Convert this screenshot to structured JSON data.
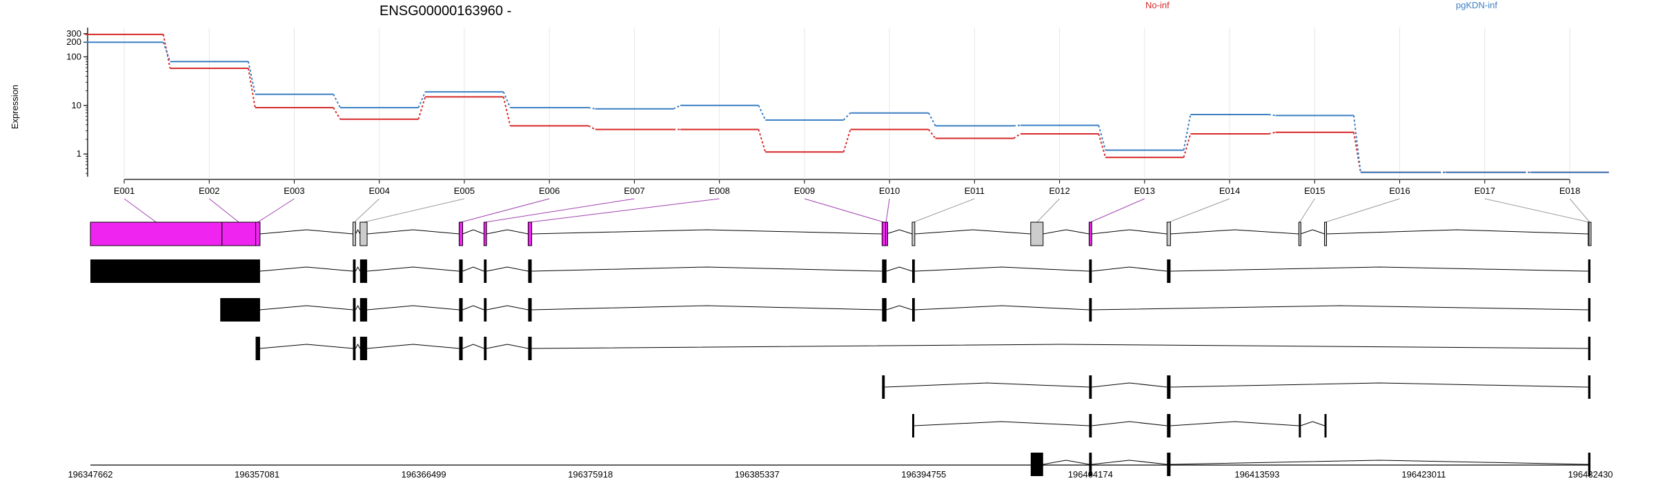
{
  "chart_data": {
    "type": "line",
    "title": "ENSG00000163960 -",
    "ylabel": "Expression",
    "y_scale": "log",
    "yticks": [
      "1",
      "10",
      "100",
      "200",
      "300"
    ],
    "categories": [
      "E001",
      "E002",
      "E003",
      "E004",
      "E005",
      "E006",
      "E007",
      "E008",
      "E009",
      "E010",
      "E011",
      "E012",
      "E013",
      "E014",
      "E015",
      "E016",
      "E017",
      "E018"
    ],
    "series": [
      {
        "name": "No-inf",
        "color": "#d62728",
        "values": [
          290,
          58,
          9,
          5.2,
          15,
          3.8,
          3.2,
          3.2,
          1.1,
          3.2,
          2.1,
          2.6,
          0.85,
          2.6,
          2.8,
          0.42,
          0.42,
          0.42
        ]
      },
      {
        "name": "pgKDN-inf",
        "color": "#3a7fc1",
        "values": [
          200,
          80,
          17,
          9,
          19,
          9,
          8.5,
          10,
          5,
          7,
          3.8,
          3.9,
          1.2,
          6.5,
          6.2,
          0.42,
          0.42,
          0.42
        ]
      }
    ],
    "genome_axis": {
      "ticks": [
        "196347662",
        "196357081",
        "196366499",
        "196375918",
        "196385337",
        "196394755",
        "196404174",
        "196413593",
        "196423011",
        "196432430"
      ],
      "min": 196347662,
      "max": 196432430
    },
    "exons": [
      {
        "id": "E001",
        "start": 196347662,
        "end": 196355100,
        "status": "highlighted"
      },
      {
        "id": "E002",
        "start": 196355100,
        "end": 196357000,
        "status": "highlighted"
      },
      {
        "id": "E003",
        "start": 196357000,
        "end": 196357250,
        "status": "highlighted"
      },
      {
        "id": "E004",
        "start": 196362500,
        "end": 196362650,
        "status": "plain"
      },
      {
        "id": "E005",
        "start": 196362900,
        "end": 196363300,
        "status": "plain"
      },
      {
        "id": "E006",
        "start": 196368500,
        "end": 196368700,
        "status": "highlighted"
      },
      {
        "id": "E007",
        "start": 196369900,
        "end": 196370050,
        "status": "highlighted"
      },
      {
        "id": "E008",
        "start": 196372400,
        "end": 196372600,
        "status": "highlighted"
      },
      {
        "id": "E009",
        "start": 196392400,
        "end": 196392600,
        "status": "highlighted"
      },
      {
        "id": "E010",
        "start": 196392600,
        "end": 196392650,
        "status": "highlighted"
      },
      {
        "id": "E011",
        "start": 196394100,
        "end": 196394250,
        "status": "plain"
      },
      {
        "id": "E012",
        "start": 196400800,
        "end": 196401500,
        "status": "plain"
      },
      {
        "id": "E013",
        "start": 196404100,
        "end": 196404250,
        "status": "highlighted"
      },
      {
        "id": "E014",
        "start": 196408500,
        "end": 196408700,
        "status": "plain"
      },
      {
        "id": "E015",
        "start": 196415950,
        "end": 196416050,
        "status": "plain"
      },
      {
        "id": "E016",
        "start": 196417400,
        "end": 196417500,
        "status": "plain"
      },
      {
        "id": "E017",
        "start": 196432300,
        "end": 196432400,
        "status": "plain"
      },
      {
        "id": "E018",
        "start": 196432350,
        "end": 196432430,
        "status": "plain"
      }
    ],
    "transcripts": [
      [
        [
          196347662,
          196357250
        ],
        [
          196362500,
          196362650
        ],
        [
          196362900,
          196363300
        ],
        [
          196368500,
          196368700
        ],
        [
          196369900,
          196370050
        ],
        [
          196372400,
          196372600
        ],
        [
          196392400,
          196392650
        ],
        [
          196394100,
          196394250
        ],
        [
          196404100,
          196404250
        ],
        [
          196408500,
          196408700
        ],
        [
          196432300,
          196432430
        ]
      ],
      [
        [
          196355000,
          196357250
        ],
        [
          196362500,
          196362650
        ],
        [
          196362900,
          196363300
        ],
        [
          196368500,
          196368700
        ],
        [
          196369900,
          196370050
        ],
        [
          196372400,
          196372600
        ],
        [
          196392400,
          196392650
        ],
        [
          196394100,
          196394250
        ],
        [
          196404100,
          196404250
        ],
        [
          196432300,
          196432430
        ]
      ],
      [
        [
          196357000,
          196357250
        ],
        [
          196362500,
          196362650
        ],
        [
          196362900,
          196363300
        ],
        [
          196368500,
          196368700
        ],
        [
          196369900,
          196370050
        ],
        [
          196372400,
          196372600
        ],
        [
          196432300,
          196432430
        ]
      ],
      [
        [
          196392400,
          196392550
        ],
        [
          196404100,
          196404250
        ],
        [
          196408500,
          196408700
        ],
        [
          196432300,
          196432430
        ]
      ],
      [
        [
          196394100,
          196394200
        ],
        [
          196404100,
          196404250
        ],
        [
          196408500,
          196408700
        ],
        [
          196415950,
          196416050
        ],
        [
          196417400,
          196417500
        ]
      ],
      [
        [
          196400800,
          196401500
        ],
        [
          196404100,
          196404250
        ],
        [
          196408500,
          196408700
        ],
        [
          196432300,
          196432430
        ]
      ]
    ],
    "colors": {
      "highlight": "#f024f0",
      "plain_exon": "#cccccc",
      "transcript_exon": "#000000",
      "connector_highlight": "#a040b0",
      "connector_plain": "#999999"
    }
  }
}
